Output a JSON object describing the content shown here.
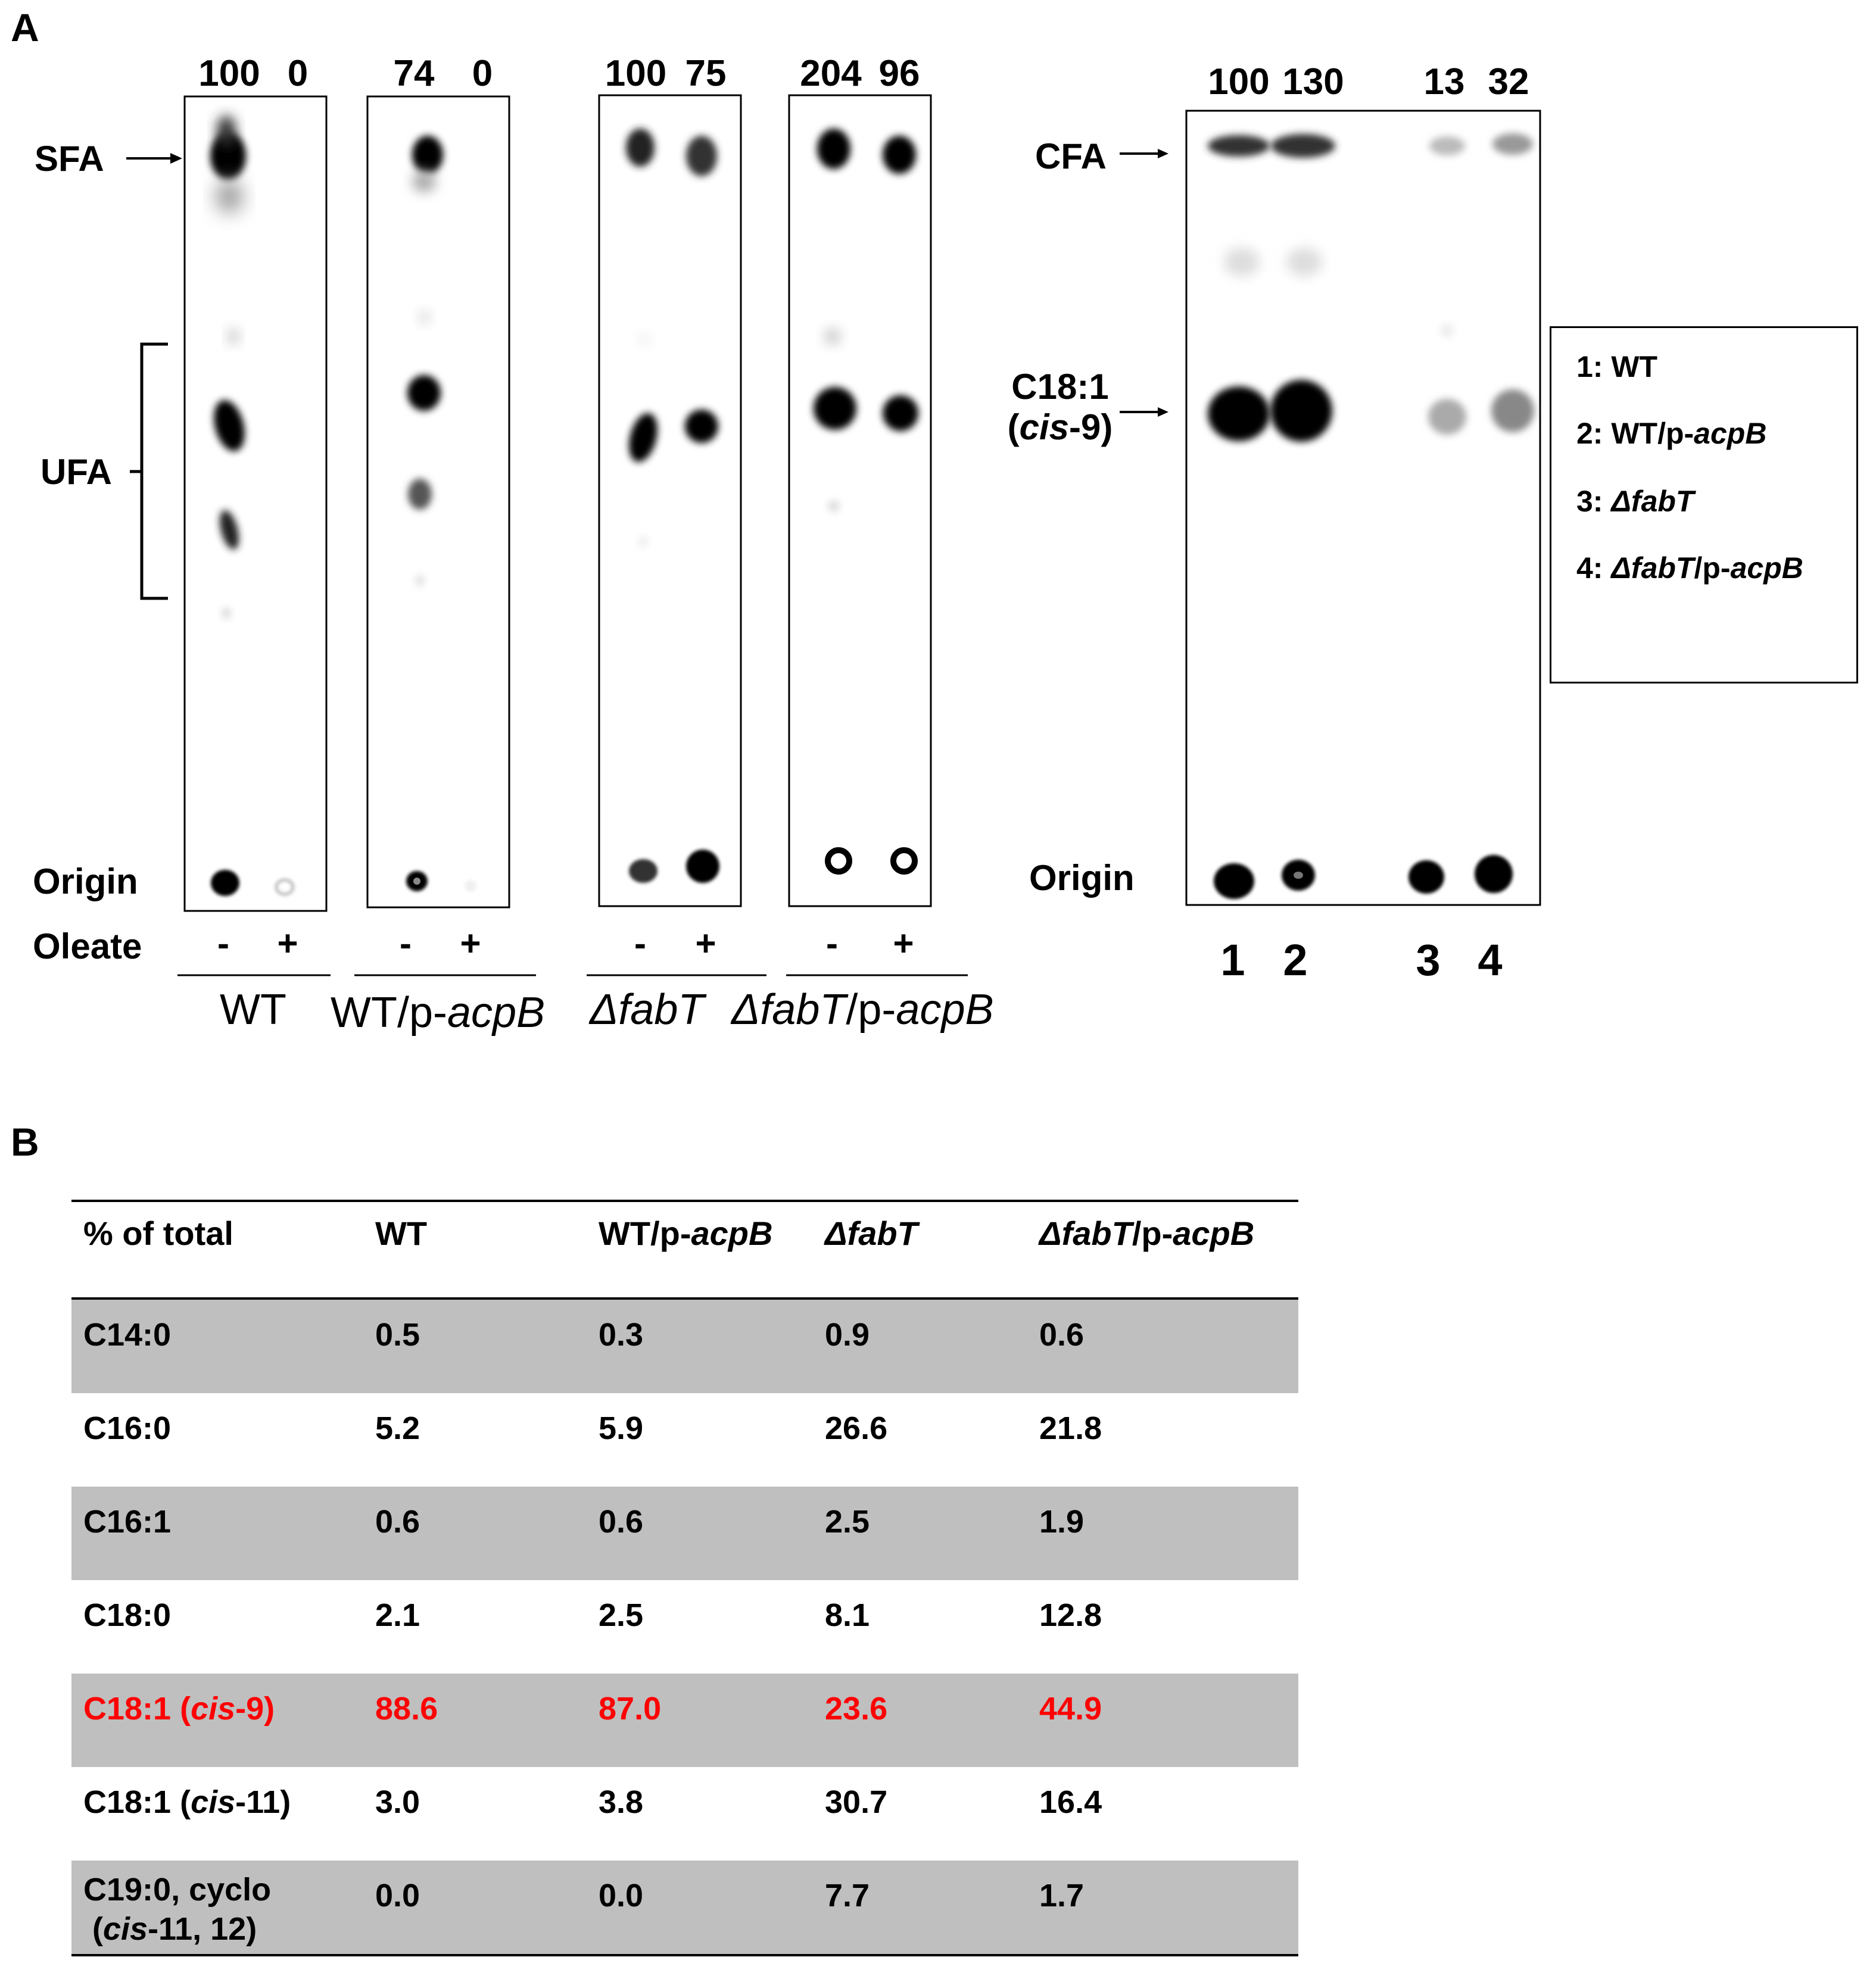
{
  "panel_a": {
    "label": "A",
    "left_gel": {
      "bands_top": [
        "SFA",
        "UFA"
      ],
      "origin_label": "Origin",
      "oleate_label": "Oleate",
      "quantification": [
        "100",
        "0",
        "74",
        "0",
        "100",
        "75",
        "204",
        "96"
      ],
      "oleate_signs": [
        "-",
        "+",
        "-",
        "+",
        "-",
        "+",
        "-",
        "+"
      ],
      "strains": {
        "s1": "WT",
        "s2_prefix": "WT/p-",
        "s2_italic": "acpB",
        "s3": "ΔfabT",
        "s4_prefix": "ΔfabT",
        "s4_mid": "/p-",
        "s4_italic": "acpB"
      }
    },
    "right_gel": {
      "quantification": [
        "100",
        "130",
        "13",
        "32"
      ],
      "band_cfa": "CFA",
      "band_c181_line1": "C18:1",
      "band_c181_open": "(",
      "band_c181_italic": "cis",
      "band_c181_close": "-9)",
      "origin_label": "Origin",
      "lane_numbers": [
        "1",
        "2",
        "3",
        "4"
      ]
    },
    "legend": {
      "l1": "1: WT",
      "l2_prefix": "2: WT/p-",
      "l2_italic": "acpB",
      "l3_prefix": "3: ",
      "l3_italic": "ΔfabT",
      "l4_prefix": "4: ",
      "l4_italic": "ΔfabT",
      "l4_mid": "/p-",
      "l4_italic2": "acpB"
    }
  },
  "panel_b": {
    "label": "B",
    "headers": {
      "h0": "% of total",
      "h1": "WT",
      "h2_prefix": "WT/p-",
      "h2_italic": "acpB",
      "h3": "ΔfabT",
      "h4_italic": "ΔfabT",
      "h4_suffix": "/p-",
      "h4_italic2": "acpB"
    },
    "rows": [
      {
        "name": "C14:0",
        "wt": "0.5",
        "wt_acpb": "0.3",
        "fabt": "0.9",
        "fabt_acpb": "0.6"
      },
      {
        "name": "C16:0",
        "wt": "5.2",
        "wt_acpb": "5.9",
        "fabt": "26.6",
        "fabt_acpb": "21.8"
      },
      {
        "name": "C16:1",
        "wt": "0.6",
        "wt_acpb": "0.6",
        "fabt": "2.5",
        "fabt_acpb": "1.9"
      },
      {
        "name": "C18:0",
        "wt": "2.1",
        "wt_acpb": "2.5",
        "fabt": "8.1",
        "fabt_acpb": "12.8"
      },
      {
        "name_prefix": "C18:1 (",
        "name_italic": "cis",
        "name_suffix": "-9)",
        "wt": "88.6",
        "wt_acpb": "87.0",
        "fabt": "23.6",
        "fabt_acpb": "44.9"
      },
      {
        "name_prefix": "C18:1 (",
        "name_italic": "cis",
        "name_suffix": "-11)",
        "wt": "3.0",
        "wt_acpb": "3.8",
        "fabt": "30.7",
        "fabt_acpb": "16.4"
      },
      {
        "name_line1": "C19:0, cyclo",
        "name_line2_open": "(",
        "name_line2_italic": "cis",
        "name_line2_suffix": "-11, 12)",
        "wt": "0.0",
        "wt_acpb": "0.0",
        "fabt": "7.7",
        "fabt_acpb": "1.7"
      }
    ],
    "highlight_color": "#ff0000",
    "shade_color": "#bfbfbf"
  }
}
